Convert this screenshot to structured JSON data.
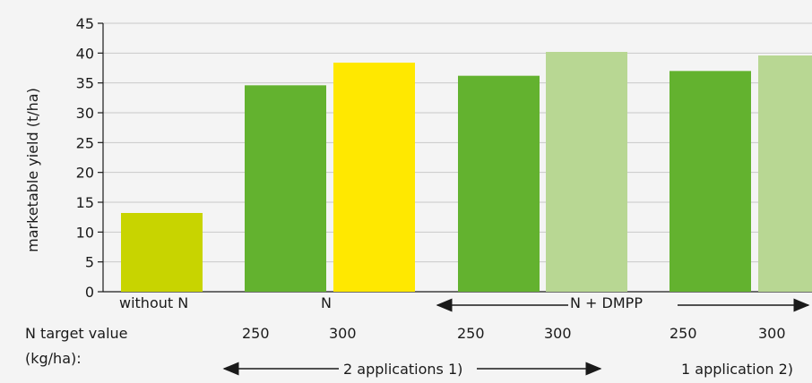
{
  "chart_data": {
    "type": "bar",
    "ylabel": "marketable yield (t/ha)",
    "ylim": [
      0,
      45
    ],
    "yticks": [
      0,
      5,
      10,
      15,
      20,
      25,
      30,
      35,
      40,
      45
    ],
    "grid": true,
    "bars": [
      {
        "group": "without N",
        "label": "",
        "value": 13.2,
        "color": "#c8d400"
      },
      {
        "group": "N",
        "label": "250",
        "value": 34.6,
        "color": "#63b22f"
      },
      {
        "group": "N",
        "label": "300",
        "value": 38.4,
        "color": "#ffe800"
      },
      {
        "group": "N + DMPP",
        "label": "250",
        "value": 36.2,
        "color": "#63b22f"
      },
      {
        "group": "N + DMPP",
        "label": "300",
        "value": 40.2,
        "color": "#b8d793"
      },
      {
        "group": "N + DMPP",
        "label": "250",
        "value": 37.0,
        "color": "#63b22f"
      },
      {
        "group": "N + DMPP",
        "label": "300",
        "value": 39.6,
        "color": "#b8d793"
      }
    ],
    "groups": [
      "without N",
      "N",
      "N + DMPP"
    ],
    "row_label_line1": "N target value",
    "row_label_line2": "(kg/ha):",
    "applications": [
      "2 applications 1)",
      "1 application 2)"
    ]
  }
}
